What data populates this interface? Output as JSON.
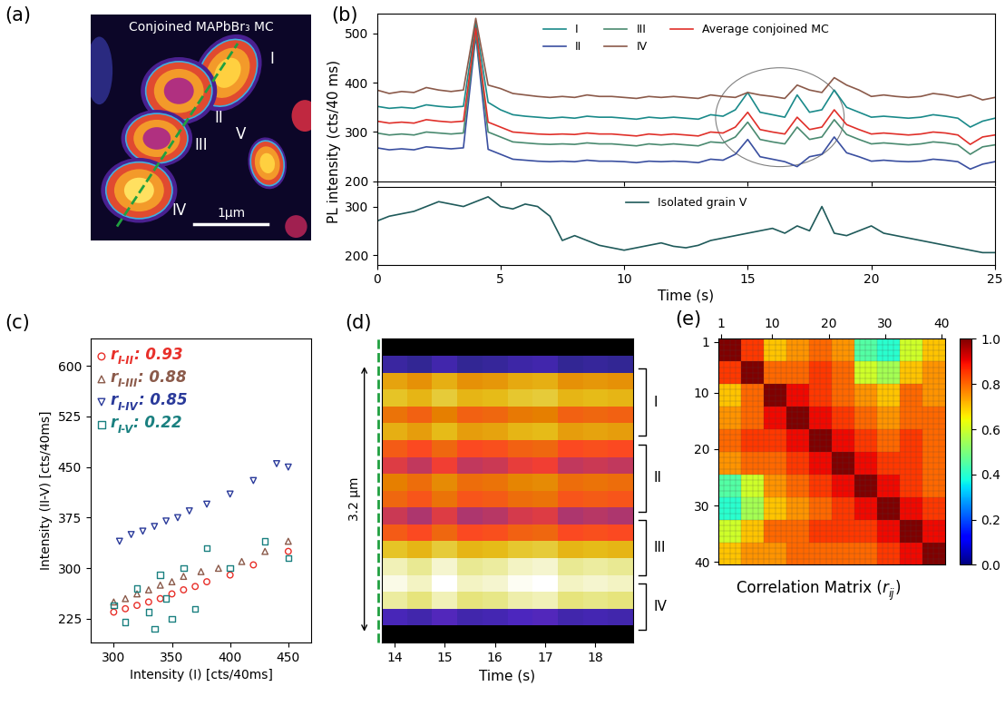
{
  "panel_labels": [
    "(a)",
    "(b)",
    "(c)",
    "(d)",
    "(e)"
  ],
  "chart_data": [
    {
      "type": "diagram",
      "title": "Conjoined MAPbBr₃ MC",
      "grains": [
        "I",
        "II",
        "III",
        "IV",
        "V"
      ],
      "scale_bar": "1μm"
    },
    {
      "type": "line",
      "ylabel": "PL intensity (cts/40 ms)",
      "x": [
        0,
        0.5,
        1,
        1.5,
        2,
        2.5,
        3,
        3.5,
        4,
        4.5,
        5,
        5.5,
        6,
        6.5,
        7,
        7.5,
        8,
        8.5,
        9,
        9.5,
        10,
        10.5,
        11,
        11.5,
        12,
        12.5,
        13,
        13.5,
        14,
        14.5,
        15,
        15.5,
        16,
        16.5,
        17,
        17.5,
        18,
        18.5,
        19,
        19.5,
        20,
        20.5,
        21,
        21.5,
        22,
        22.5,
        23,
        23.5,
        24,
        24.5,
        25
      ],
      "xlim": [
        0,
        25
      ],
      "xticks": [
        0,
        5,
        10,
        15,
        20,
        25
      ],
      "ylim": [
        200,
        540
      ],
      "yticks": [
        200,
        300,
        400,
        500
      ],
      "tick_labels": "y",
      "legend": "upper center",
      "series": [
        {
          "name": "I",
          "color": "#1a8a8a",
          "values": [
            352,
            348,
            350,
            348,
            355,
            352,
            350,
            352,
            520,
            360,
            345,
            335,
            332,
            330,
            328,
            330,
            328,
            332,
            330,
            330,
            328,
            326,
            330,
            328,
            330,
            328,
            326,
            335,
            332,
            345,
            380,
            340,
            335,
            330,
            375,
            340,
            345,
            385,
            350,
            340,
            330,
            332,
            330,
            328,
            330,
            335,
            332,
            328,
            310,
            322,
            328
          ]
        },
        {
          "name": "II",
          "color": "#3a4fa0",
          "values": [
            268,
            264,
            266,
            264,
            270,
            268,
            266,
            268,
            495,
            265,
            255,
            245,
            243,
            241,
            240,
            241,
            240,
            243,
            241,
            241,
            240,
            238,
            241,
            240,
            241,
            240,
            238,
            245,
            243,
            255,
            285,
            250,
            245,
            240,
            230,
            250,
            255,
            290,
            258,
            250,
            241,
            243,
            241,
            240,
            241,
            245,
            243,
            240,
            225,
            235,
            240
          ]
        },
        {
          "name": "III",
          "color": "#4a8a70",
          "values": [
            298,
            294,
            296,
            294,
            300,
            298,
            296,
            298,
            500,
            300,
            290,
            280,
            278,
            276,
            275,
            276,
            275,
            278,
            276,
            276,
            274,
            272,
            276,
            274,
            276,
            274,
            272,
            280,
            278,
            290,
            320,
            285,
            280,
            276,
            310,
            285,
            290,
            325,
            295,
            285,
            276,
            278,
            276,
            274,
            276,
            280,
            278,
            274,
            255,
            270,
            274
          ]
        },
        {
          "name": "IV",
          "color": "#8b5a4a",
          "values": [
            385,
            378,
            382,
            380,
            390,
            385,
            382,
            385,
            530,
            395,
            388,
            378,
            375,
            372,
            370,
            372,
            370,
            375,
            372,
            372,
            370,
            368,
            372,
            370,
            372,
            370,
            368,
            375,
            372,
            370,
            380,
            375,
            372,
            368,
            395,
            385,
            380,
            410,
            395,
            385,
            372,
            375,
            372,
            370,
            372,
            378,
            375,
            370,
            375,
            365,
            370
          ]
        },
        {
          "name": "Average conjoined MC",
          "color": "#e0302a",
          "values": [
            322,
            318,
            320,
            318,
            325,
            322,
            320,
            322,
            510,
            320,
            310,
            300,
            298,
            296,
            295,
            296,
            295,
            298,
            296,
            296,
            294,
            292,
            296,
            294,
            296,
            294,
            292,
            300,
            298,
            310,
            340,
            305,
            300,
            296,
            330,
            305,
            310,
            345,
            315,
            305,
            296,
            298,
            296,
            294,
            296,
            300,
            298,
            294,
            275,
            290,
            294
          ]
        }
      ]
    },
    {
      "type": "line",
      "xlabel": "Time (s)",
      "x": [
        0,
        0.5,
        1,
        1.5,
        2,
        2.5,
        3,
        3.5,
        4,
        4.5,
        5,
        5.5,
        6,
        6.5,
        7,
        7.5,
        8,
        8.5,
        9,
        9.5,
        10,
        10.5,
        11,
        11.5,
        12,
        12.5,
        13,
        13.5,
        14,
        14.5,
        15,
        15.5,
        16,
        16.5,
        17,
        17.5,
        18,
        18.5,
        19,
        19.5,
        20,
        20.5,
        21,
        21.5,
        22,
        22.5,
        23,
        23.5,
        24,
        24.5,
        25
      ],
      "xlim": [
        0,
        25
      ],
      "xticks": [
        0,
        5,
        10,
        15,
        20,
        25
      ],
      "ylim": [
        180,
        340
      ],
      "yticks": [
        200,
        300
      ],
      "legend": "upper center",
      "series": [
        {
          "name": "Isolated grain V",
          "color": "#1f5a5a",
          "values": [
            270,
            280,
            285,
            290,
            300,
            310,
            305,
            300,
            310,
            320,
            300,
            295,
            305,
            300,
            280,
            230,
            240,
            230,
            220,
            215,
            210,
            215,
            220,
            225,
            218,
            215,
            220,
            230,
            235,
            240,
            245,
            250,
            255,
            245,
            260,
            250,
            300,
            245,
            240,
            250,
            260,
            245,
            240,
            235,
            230,
            225,
            220,
            215,
            210,
            205,
            205
          ]
        }
      ]
    },
    {
      "type": "scatter",
      "xlabel": "Intensity (I) [cts/40ms]",
      "ylabel": "Intensity (II-V) [cts/40ms]",
      "xlim": [
        280,
        470
      ],
      "xticks": [
        300,
        350,
        400,
        450
      ],
      "ylim": [
        190,
        640
      ],
      "yticks": [
        225,
        300,
        375,
        450,
        525,
        600
      ],
      "series": [
        {
          "symbol": "r",
          "subscript": "I-II",
          "separator": ": ",
          "r": 0.93,
          "color": "#e8302a",
          "marker": "circle",
          "x": [
            300,
            310,
            320,
            330,
            340,
            350,
            360,
            370,
            380,
            400,
            420,
            450
          ],
          "y": [
            235,
            240,
            245,
            250,
            255,
            262,
            268,
            273,
            280,
            290,
            305,
            325
          ]
        },
        {
          "symbol": "r",
          "subscript": "I-III",
          "separator": ": ",
          "r": 0.88,
          "color": "#8b5a4a",
          "marker": "triangle_up",
          "x": [
            300,
            310,
            320,
            330,
            340,
            350,
            360,
            375,
            390,
            410,
            430,
            450
          ],
          "y": [
            250,
            255,
            262,
            268,
            275,
            280,
            288,
            295,
            300,
            310,
            325,
            340
          ]
        },
        {
          "symbol": "r",
          "subscript": "I-IV",
          "separator": ": ",
          "r": 0.85,
          "color": "#2a3a9a",
          "marker": "triangle_down",
          "x": [
            305,
            315,
            325,
            335,
            345,
            355,
            365,
            380,
            400,
            420,
            440,
            450
          ],
          "y": [
            340,
            350,
            355,
            362,
            370,
            375,
            385,
            395,
            410,
            430,
            455,
            450
          ]
        },
        {
          "symbol": "r",
          "subscript": "I-V",
          "separator": ": ",
          "r": 0.22,
          "color": "#1a8080",
          "marker": "square",
          "x": [
            300,
            310,
            320,
            330,
            335,
            340,
            345,
            350,
            360,
            370,
            380,
            400,
            430,
            450
          ],
          "y": [
            245,
            220,
            270,
            235,
            210,
            290,
            255,
            225,
            300,
            240,
            330,
            300,
            340,
            315
          ]
        }
      ]
    },
    {
      "type": "heatmap",
      "xlabel": "Time (s)",
      "tick_labels": "x",
      "x": [
        14.0,
        14.5,
        15.0,
        15.5,
        16.0,
        16.5,
        17.0,
        17.5,
        18.0,
        18.5
      ],
      "xlim": [
        13.75,
        18.75
      ],
      "xticks": [
        14,
        15,
        16,
        17,
        18
      ],
      "y": [
        -0.2,
        0.0,
        0.2,
        0.4,
        0.6,
        0.8,
        1.0,
        1.2,
        1.4,
        1.6,
        1.8,
        2.0,
        2.2,
        2.4,
        2.6,
        2.8,
        3.0,
        3.2
      ],
      "ylim": [
        3.3,
        -0.3
      ],
      "cells": [
        [
          20,
          20,
          20,
          20,
          20,
          20,
          20,
          20,
          20,
          20
        ],
        [
          100,
          90,
          110,
          90,
          95,
          105,
          110,
          90,
          95,
          90
        ],
        [
          315,
          300,
          325,
          300,
          305,
          320,
          325,
          300,
          305,
          300
        ],
        [
          345,
          330,
          355,
          330,
          335,
          350,
          355,
          330,
          335,
          330
        ],
        [
          275,
          260,
          285,
          260,
          265,
          280,
          285,
          260,
          265,
          260
        ],
        [
          325,
          310,
          335,
          310,
          315,
          330,
          335,
          310,
          315,
          310
        ],
        [
          255,
          240,
          265,
          240,
          245,
          260,
          265,
          240,
          245,
          240
        ],
        [
          215,
          200,
          225,
          200,
          205,
          220,
          225,
          200,
          205,
          200
        ],
        [
          285,
          270,
          295,
          270,
          275,
          290,
          295,
          270,
          275,
          270
        ],
        [
          265,
          250,
          275,
          250,
          255,
          270,
          275,
          250,
          255,
          250
        ],
        [
          205,
          190,
          215,
          190,
          195,
          210,
          215,
          190,
          195,
          190
        ],
        [
          255,
          240,
          265,
          240,
          245,
          260,
          265,
          240,
          245,
          240
        ],
        [
          345,
          330,
          355,
          330,
          335,
          350,
          355,
          330,
          335,
          330
        ],
        [
          415,
          400,
          425,
          400,
          405,
          420,
          425,
          400,
          405,
          400
        ],
        [
          435,
          420,
          445,
          420,
          425,
          440,
          445,
          420,
          425,
          420
        ],
        [
          405,
          390,
          415,
          390,
          395,
          410,
          415,
          390,
          395,
          390
        ],
        [
          120,
          110,
          130,
          110,
          115,
          125,
          130,
          110,
          115,
          110
        ],
        [
          20,
          20,
          20,
          20,
          20,
          20,
          20,
          20,
          20,
          20
        ]
      ],
      "scale_bar": {
        "label": "3.2 μm",
        "length": 3.2
      },
      "regions": [
        {
          "label": "I",
          "range": [
            0.05,
            0.85
          ]
        },
        {
          "label": "II",
          "range": [
            0.95,
            1.75
          ]
        },
        {
          "label": "III",
          "range": [
            1.85,
            2.5
          ]
        },
        {
          "label": "IV",
          "range": [
            2.6,
            3.15
          ]
        }
      ]
    },
    {
      "type": "heatmap",
      "xlabel": {
        "text": "Correlation Matrix (",
        "symbol": "r",
        "subscript": "ij",
        "close": ")"
      },
      "xlim": [
        0.5,
        40.5
      ],
      "ylim": [
        40.5,
        0.5
      ],
      "xticks": [
        1,
        10,
        20,
        30,
        40
      ],
      "yticks": [
        1,
        10,
        20,
        30,
        40
      ],
      "cells": [
        [
          1.0,
          0.85,
          0.7,
          0.75,
          0.8,
          0.75,
          0.45,
          0.4,
          0.6,
          0.7
        ],
        [
          0.85,
          1.0,
          0.8,
          0.8,
          0.85,
          0.8,
          0.6,
          0.55,
          0.7,
          0.75
        ],
        [
          0.7,
          0.8,
          1.0,
          0.9,
          0.85,
          0.8,
          0.75,
          0.7,
          0.8,
          0.75
        ],
        [
          0.75,
          0.8,
          0.9,
          1.0,
          0.9,
          0.85,
          0.8,
          0.75,
          0.8,
          0.8
        ],
        [
          0.8,
          0.85,
          0.85,
          0.9,
          1.0,
          0.9,
          0.85,
          0.8,
          0.85,
          0.8
        ],
        [
          0.75,
          0.8,
          0.8,
          0.85,
          0.9,
          1.0,
          0.9,
          0.85,
          0.85,
          0.8
        ],
        [
          0.45,
          0.6,
          0.75,
          0.8,
          0.85,
          0.9,
          1.0,
          0.9,
          0.85,
          0.8
        ],
        [
          0.4,
          0.55,
          0.7,
          0.75,
          0.8,
          0.85,
          0.9,
          1.0,
          0.9,
          0.85
        ],
        [
          0.6,
          0.7,
          0.8,
          0.8,
          0.85,
          0.85,
          0.85,
          0.9,
          1.0,
          0.9
        ],
        [
          0.7,
          0.75,
          0.75,
          0.8,
          0.8,
          0.8,
          0.8,
          0.85,
          0.9,
          1.0
        ]
      ],
      "colorbar_range": [
        0.0,
        1.0
      ],
      "colorbar_ticks": [
        0.0,
        0.2,
        0.4,
        0.6,
        0.8,
        1.0
      ]
    }
  ]
}
